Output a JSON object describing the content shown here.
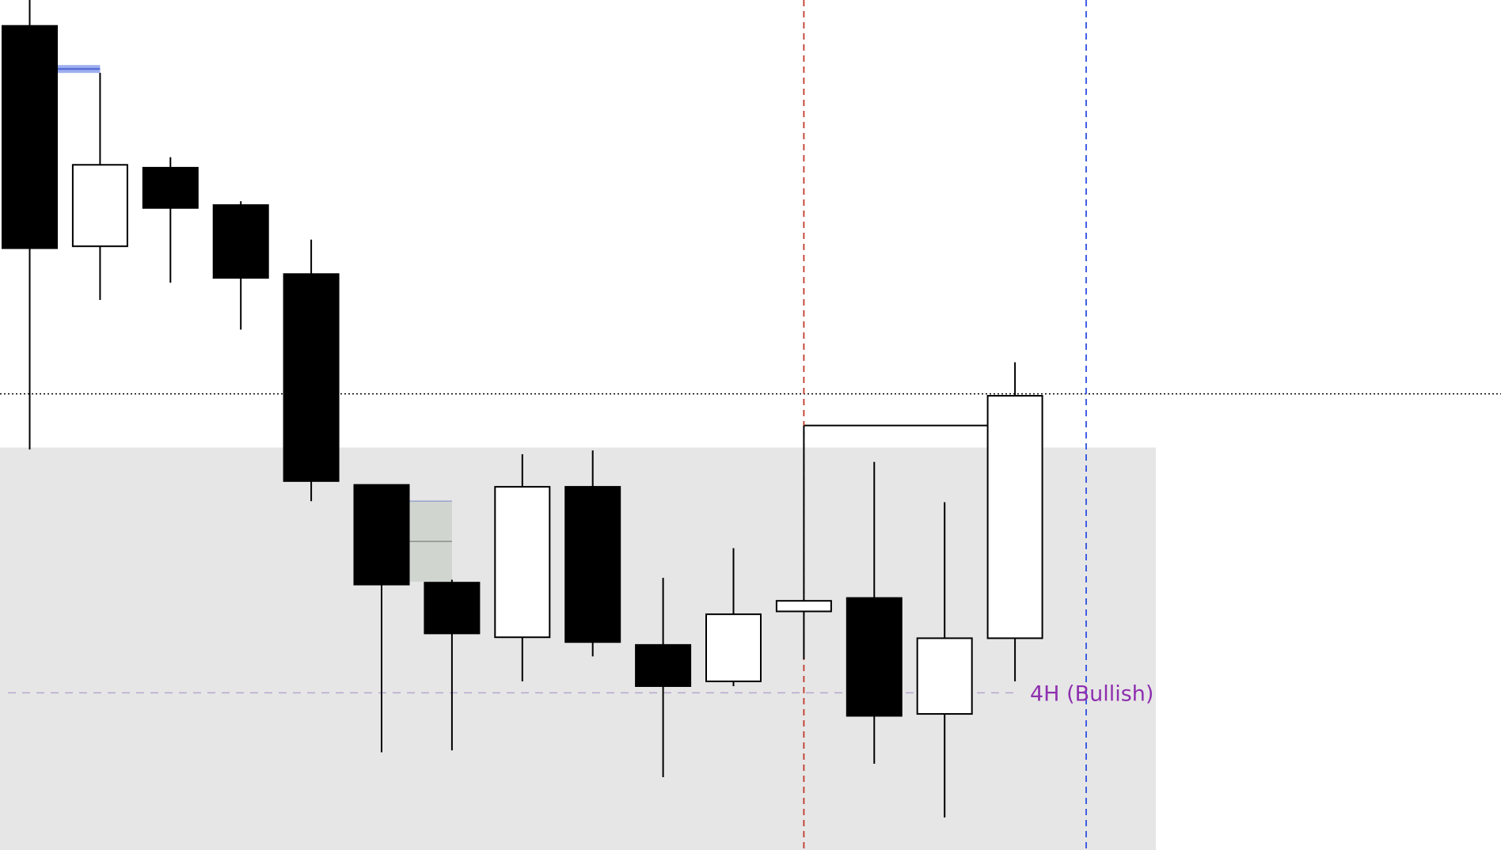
{
  "chart_data": {
    "type": "candlestick",
    "ylim": [
      0,
      88.7
    ],
    "grid": false,
    "candles": [
      {
        "o": 86.0,
        "h": 90.0,
        "l": 41.8,
        "c": 62.8
      },
      {
        "o": 63.0,
        "h": 81.1,
        "l": 57.4,
        "c": 71.5
      },
      {
        "o": 71.2,
        "h": 72.3,
        "l": 59.2,
        "c": 67.0
      },
      {
        "o": 67.3,
        "h": 67.7,
        "l": 54.3,
        "c": 59.7
      },
      {
        "o": 60.1,
        "h": 63.7,
        "l": 36.4,
        "c": 38.5
      },
      {
        "o": 38.1,
        "h": 38.1,
        "l": 10.2,
        "c": 27.7
      },
      {
        "o": 27.9,
        "h": 28.2,
        "l": 10.4,
        "c": 22.6
      },
      {
        "o": 22.2,
        "h": 41.3,
        "l": 17.6,
        "c": 37.9
      },
      {
        "o": 37.9,
        "h": 41.7,
        "l": 20.2,
        "c": 21.7
      },
      {
        "o": 21.4,
        "h": 28.4,
        "l": 7.6,
        "c": 17.1
      },
      {
        "o": 17.6,
        "h": 31.5,
        "l": 17.1,
        "c": 24.6
      },
      {
        "o": 24.9,
        "h": 44.3,
        "l": 19.9,
        "c": 26.0
      },
      {
        "o": 26.3,
        "h": 40.5,
        "l": 9.0,
        "c": 14.0
      },
      {
        "o": 14.2,
        "h": 36.3,
        "l": 3.4,
        "c": 22.1
      },
      {
        "o": 22.1,
        "h": 50.9,
        "l": 17.6,
        "c": 47.4
      }
    ],
    "zone": {
      "top": 42.0,
      "bottom": 0,
      "color": "#e6e6e6"
    },
    "gap_box": {
      "top": 36.4,
      "bottom": 28.0,
      "mid": 32.2,
      "color": "#d0d5d0"
    },
    "horizontal_lines": [
      {
        "name": "dotted-level",
        "value": 47.6,
        "style": "dotted",
        "color": "#000000"
      },
      {
        "name": "bullish-level",
        "value": 16.4,
        "style": "dashed",
        "color": "#b9a6cf",
        "label": "4H (Bullish)",
        "label_color": "#8e2fb0"
      },
      {
        "name": "connector-level",
        "value": 44.3,
        "style": "solid",
        "color": "#000000"
      },
      {
        "name": "blue-level",
        "value": 81.5,
        "style": "solid",
        "color": "#5a6fd8"
      }
    ],
    "vertical_markers": [
      {
        "name": "red-marker",
        "candle_index": 11,
        "color": "#c0392b"
      },
      {
        "name": "blue-marker",
        "candle_index": 15,
        "color": "#2f4fe0"
      }
    ],
    "bull_color": "#ffffff",
    "bear_color": "#000000"
  }
}
